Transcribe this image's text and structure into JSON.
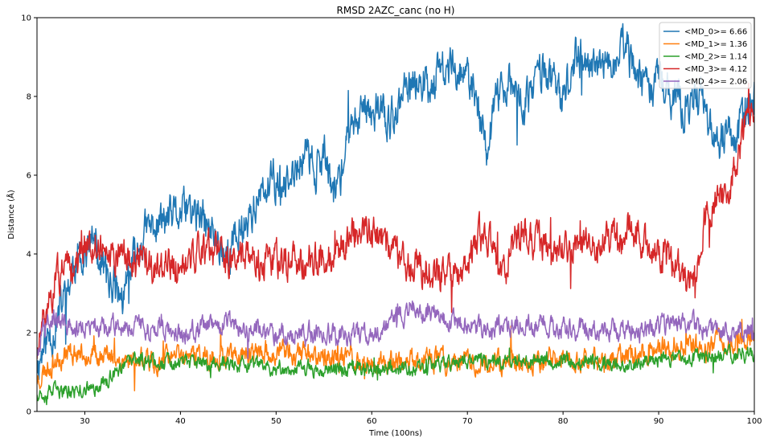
{
  "chart_data": {
    "type": "line",
    "title": "RMSD 2AZC_canc (no H)",
    "xlabel": "Time (100ns)",
    "ylabel": "Distance (Å)",
    "xlim": [
      25,
      100
    ],
    "ylim": [
      0,
      10
    ],
    "xticks": [
      "30",
      "40",
      "50",
      "60",
      "70",
      "80",
      "90",
      "100"
    ],
    "yticks": [
      "0",
      "2",
      "4",
      "6",
      "8",
      "10"
    ],
    "grid": false,
    "legend_position": "top-right",
    "series": [
      {
        "name": "<MD_0>= 6.66",
        "color": "#1f77b4",
        "keypoints": [
          [
            25,
            1.2
          ],
          [
            26,
            1.8
          ],
          [
            27,
            2.2
          ],
          [
            28,
            3.0
          ],
          [
            29,
            3.8
          ],
          [
            30,
            4.1
          ],
          [
            31,
            4.3
          ],
          [
            32,
            3.6
          ],
          [
            33,
            3.2
          ],
          [
            34,
            2.8
          ],
          [
            35,
            3.7
          ],
          [
            36,
            4.4
          ],
          [
            37,
            4.7
          ],
          [
            38,
            4.8
          ],
          [
            39,
            4.9
          ],
          [
            40,
            5.0
          ],
          [
            41,
            5.1
          ],
          [
            42,
            4.9
          ],
          [
            43,
            4.6
          ],
          [
            44,
            4.3
          ],
          [
            45,
            4.0
          ],
          [
            46,
            4.5
          ],
          [
            47,
            4.9
          ],
          [
            48,
            5.3
          ],
          [
            49,
            5.6
          ],
          [
            50,
            5.9
          ],
          [
            51,
            5.6
          ],
          [
            52,
            6.0
          ],
          [
            53,
            6.6
          ],
          [
            54,
            6.2
          ],
          [
            55,
            6.5
          ],
          [
            56,
            5.6
          ],
          [
            57,
            6.2
          ],
          [
            58,
            7.3
          ],
          [
            59,
            7.6
          ],
          [
            60,
            7.8
          ],
          [
            61,
            7.6
          ],
          [
            62,
            7.3
          ],
          [
            63,
            7.9
          ],
          [
            64,
            8.2
          ],
          [
            65,
            8.5
          ],
          [
            66,
            8.3
          ],
          [
            67,
            8.6
          ],
          [
            68,
            8.7
          ],
          [
            69,
            8.8
          ],
          [
            70,
            8.4
          ],
          [
            71,
            7.8
          ],
          [
            72,
            6.6
          ],
          [
            73,
            7.8
          ],
          [
            74,
            8.4
          ],
          [
            75,
            8.1
          ],
          [
            76,
            7.6
          ],
          [
            77,
            8.4
          ],
          [
            78,
            8.8
          ],
          [
            79,
            8.3
          ],
          [
            80,
            7.8
          ],
          [
            81,
            8.9
          ],
          [
            82,
            9.1
          ],
          [
            83,
            8.6
          ],
          [
            84,
            8.8
          ],
          [
            85,
            8.6
          ],
          [
            86,
            9.2
          ],
          [
            87,
            8.9
          ],
          [
            88,
            8.5
          ],
          [
            89,
            8.1
          ],
          [
            90,
            8.5
          ],
          [
            91,
            8.1
          ],
          [
            92,
            7.9
          ],
          [
            93,
            7.6
          ],
          [
            94,
            8.1
          ],
          [
            95,
            7.7
          ],
          [
            96,
            6.6
          ],
          [
            97,
            7.2
          ],
          [
            98,
            6.8
          ],
          [
            99,
            7.6
          ],
          [
            100,
            7.9
          ]
        ],
        "noise": 0.4,
        "seed": 11
      },
      {
        "name": "<MD_1>= 1.36",
        "color": "#ff7f0e",
        "keypoints": [
          [
            25,
            0.8
          ],
          [
            26,
            1.1
          ],
          [
            27,
            1.3
          ],
          [
            28,
            1.5
          ],
          [
            30,
            1.5
          ],
          [
            32,
            1.4
          ],
          [
            34,
            1.3
          ],
          [
            36,
            1.3
          ],
          [
            38,
            1.3
          ],
          [
            40,
            1.4
          ],
          [
            45,
            1.4
          ],
          [
            50,
            1.5
          ],
          [
            55,
            1.4
          ],
          [
            60,
            1.2
          ],
          [
            65,
            1.3
          ],
          [
            70,
            1.3
          ],
          [
            75,
            1.3
          ],
          [
            80,
            1.3
          ],
          [
            85,
            1.3
          ],
          [
            90,
            1.6
          ],
          [
            95,
            1.7
          ],
          [
            100,
            1.8
          ]
        ],
        "noise": 0.22,
        "seed": 23
      },
      {
        "name": "<MD_2>= 1.14",
        "color": "#2ca02c",
        "keypoints": [
          [
            25,
            0.5
          ],
          [
            27,
            0.5
          ],
          [
            29,
            0.5
          ],
          [
            31,
            0.6
          ],
          [
            33,
            0.9
          ],
          [
            35,
            1.3
          ],
          [
            37,
            1.3
          ],
          [
            40,
            1.2
          ],
          [
            45,
            1.2
          ],
          [
            50,
            1.1
          ],
          [
            55,
            1.1
          ],
          [
            60,
            1.1
          ],
          [
            65,
            1.1
          ],
          [
            70,
            1.3
          ],
          [
            75,
            1.3
          ],
          [
            80,
            1.3
          ],
          [
            85,
            1.2
          ],
          [
            90,
            1.3
          ],
          [
            95,
            1.4
          ],
          [
            100,
            1.5
          ]
        ],
        "noise": 0.15,
        "seed": 37
      },
      {
        "name": "<MD_3>= 4.12",
        "color": "#d62728",
        "keypoints": [
          [
            25,
            1.5
          ],
          [
            26,
            2.5
          ],
          [
            27,
            3.4
          ],
          [
            28,
            3.5
          ],
          [
            29,
            3.6
          ],
          [
            30,
            4.2
          ],
          [
            31,
            4.3
          ],
          [
            32,
            4.1
          ],
          [
            33,
            4.0
          ],
          [
            34,
            4.3
          ],
          [
            35,
            3.7
          ],
          [
            36,
            3.8
          ],
          [
            37,
            3.6
          ],
          [
            38,
            3.8
          ],
          [
            40,
            3.7
          ],
          [
            42,
            4.0
          ],
          [
            44,
            4.0
          ],
          [
            46,
            3.9
          ],
          [
            48,
            3.9
          ],
          [
            50,
            3.8
          ],
          [
            52,
            3.8
          ],
          [
            54,
            3.9
          ],
          [
            56,
            3.8
          ],
          [
            58,
            4.5
          ],
          [
            60,
            4.6
          ],
          [
            62,
            4.2
          ],
          [
            63,
            3.8
          ],
          [
            65,
            3.7
          ],
          [
            67,
            3.5
          ],
          [
            69,
            3.5
          ],
          [
            70,
            3.6
          ],
          [
            71,
            4.3
          ],
          [
            72,
            4.5
          ],
          [
            73,
            3.8
          ],
          [
            74,
            3.5
          ],
          [
            75,
            4.6
          ],
          [
            77,
            4.3
          ],
          [
            79,
            3.9
          ],
          [
            81,
            4.2
          ],
          [
            83,
            4.1
          ],
          [
            85,
            4.4
          ],
          [
            87,
            4.6
          ],
          [
            89,
            4.2
          ],
          [
            91,
            3.8
          ],
          [
            93,
            3.3
          ],
          [
            94,
            3.6
          ],
          [
            95,
            5.2
          ],
          [
            96,
            5.4
          ],
          [
            97,
            5.4
          ],
          [
            98,
            6.1
          ],
          [
            99,
            7.3
          ],
          [
            100,
            7.9
          ]
        ],
        "noise": 0.35,
        "seed": 51
      },
      {
        "name": "<MD_4>= 2.06",
        "color": "#9467bd",
        "keypoints": [
          [
            25,
            1.5
          ],
          [
            26,
            2.5
          ],
          [
            27,
            2.3
          ],
          [
            28,
            2.2
          ],
          [
            30,
            2.1
          ],
          [
            32,
            2.1
          ],
          [
            35,
            2.2
          ],
          [
            38,
            2.1
          ],
          [
            40,
            2.0
          ],
          [
            45,
            2.2
          ],
          [
            50,
            2.0
          ],
          [
            55,
            2.0
          ],
          [
            58,
            2.0
          ],
          [
            60,
            1.9
          ],
          [
            62,
            2.3
          ],
          [
            64,
            2.6
          ],
          [
            66,
            2.5
          ],
          [
            68,
            2.3
          ],
          [
            70,
            2.2
          ],
          [
            72,
            2.1
          ],
          [
            75,
            2.2
          ],
          [
            78,
            2.2
          ],
          [
            80,
            2.1
          ],
          [
            85,
            2.1
          ],
          [
            88,
            2.0
          ],
          [
            90,
            2.2
          ],
          [
            92,
            2.3
          ],
          [
            95,
            2.1
          ],
          [
            100,
            2.0
          ]
        ],
        "noise": 0.2,
        "seed": 67
      }
    ]
  }
}
